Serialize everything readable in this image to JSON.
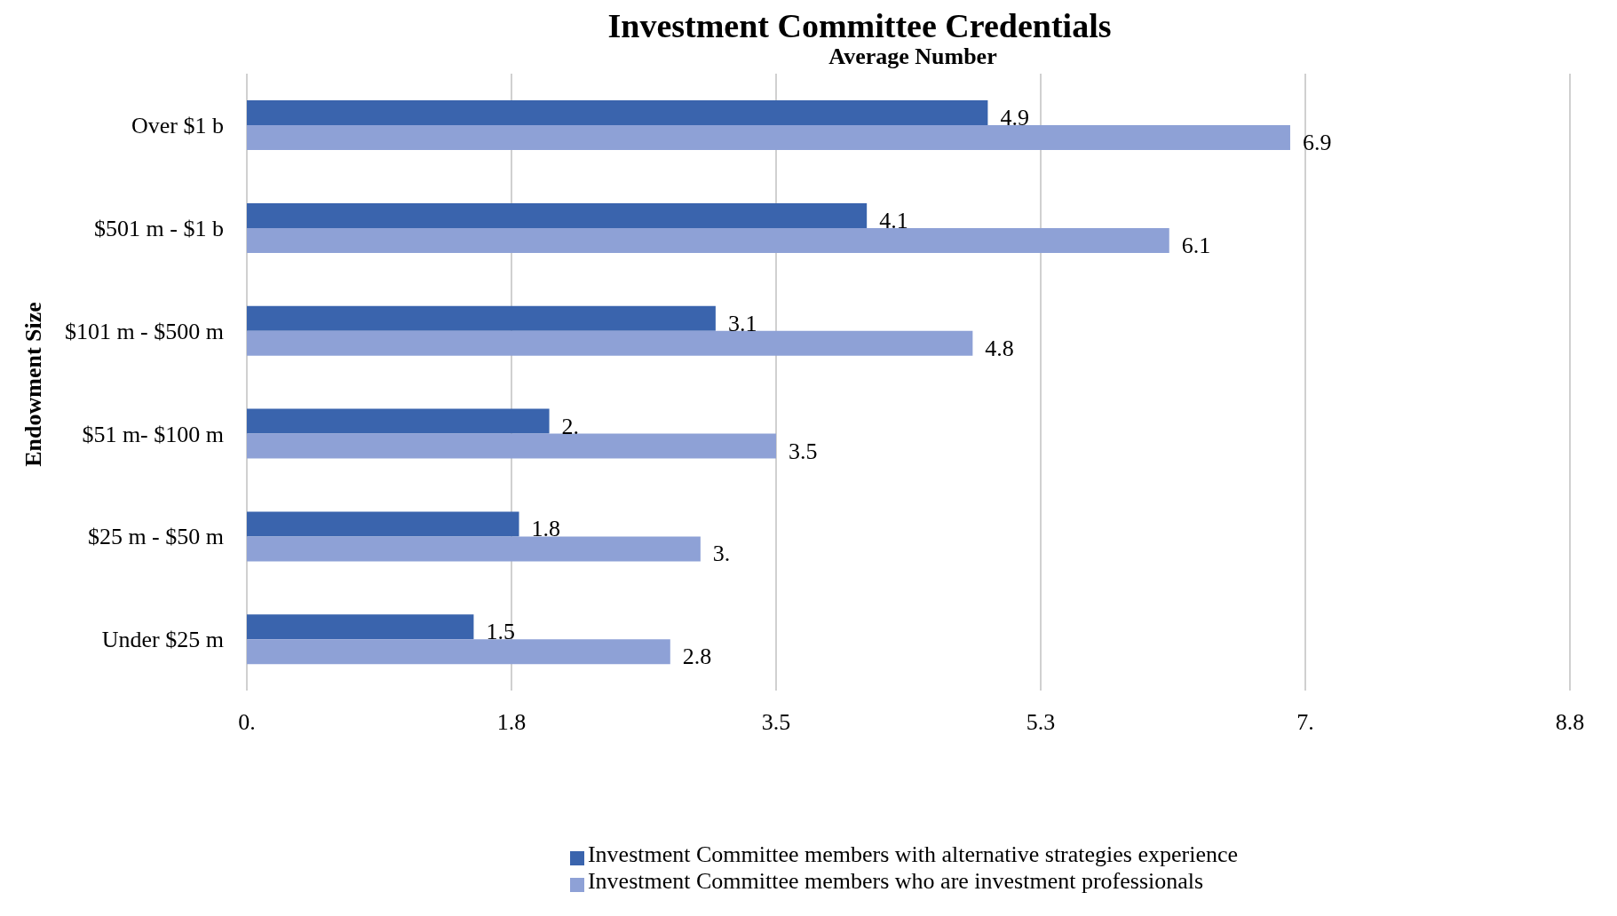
{
  "chart_data": {
    "type": "bar",
    "orientation": "horizontal",
    "title": "Investment Committee Credentials",
    "subtitle": "Average Number",
    "ylabel": "Endowment Size",
    "categories": [
      "Over $1 b",
      "$501 m - $1 b",
      "$101 m - $500 m",
      "$51 m- $100 m",
      "$25 m - $50 m",
      "Under $25 m"
    ],
    "series": [
      {
        "name": "Investment Committee members with alternative strategies experience",
        "color": "#3a64ad",
        "values": [
          4.9,
          4.1,
          3.1,
          2.0,
          1.8,
          1.5
        ],
        "value_labels": [
          "4.9",
          "4.1",
          "3.1",
          "2.",
          "1.8",
          "1.5"
        ]
      },
      {
        "name": "Investment Committee members who are investment professionals",
        "color": "#8ea1d6",
        "values": [
          6.9,
          6.1,
          4.8,
          3.5,
          3.0,
          2.8
        ],
        "value_labels": [
          "6.9",
          "6.1",
          "4.8",
          "3.5",
          "3.",
          "2.8"
        ]
      }
    ],
    "xlim": [
      0,
      8.75
    ],
    "xticks": [
      {
        "value": 0,
        "label": "0."
      },
      {
        "value": 1.75,
        "label": "1.8"
      },
      {
        "value": 3.5,
        "label": "3.5"
      },
      {
        "value": 5.25,
        "label": "5.3"
      },
      {
        "value": 7,
        "label": "7."
      },
      {
        "value": 8.75,
        "label": "8.8"
      }
    ],
    "grid": "x",
    "legend": "bottom"
  }
}
